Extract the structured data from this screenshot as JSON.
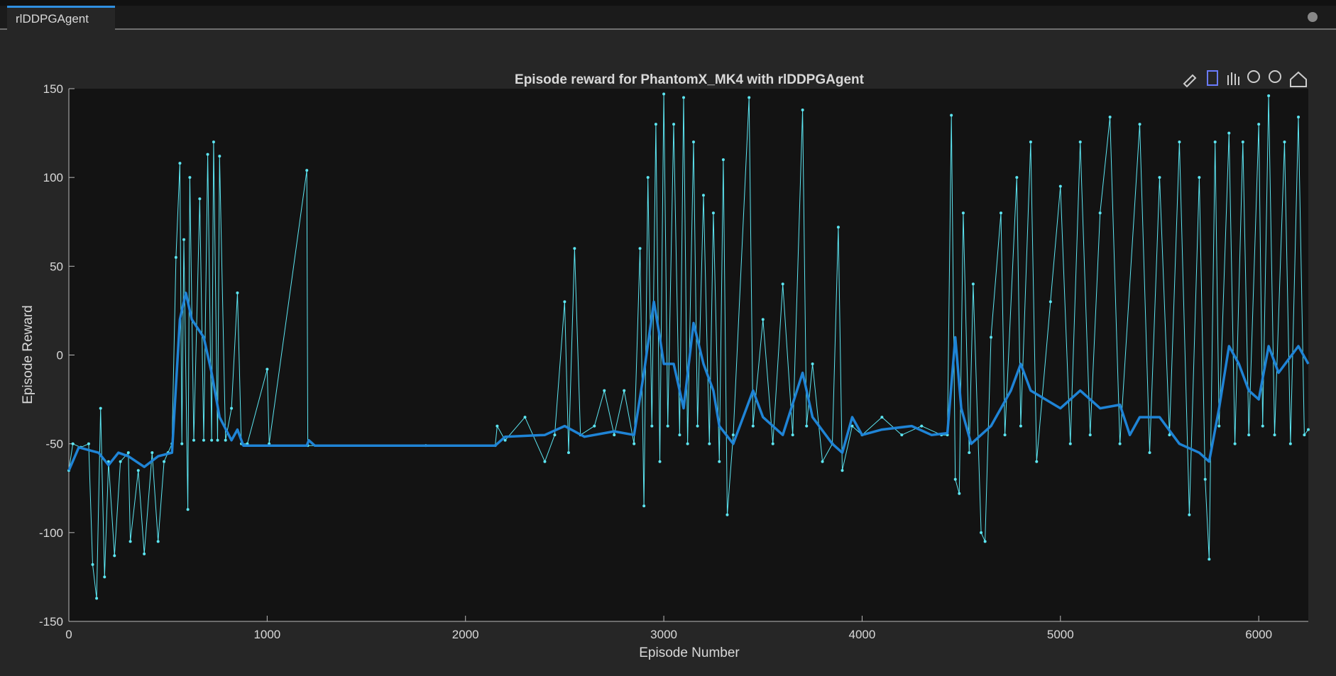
{
  "tab_label": "rlDDPGAgent",
  "chart_data": {
    "type": "line",
    "title": "Episode reward for PhantomX_MK4 with rlDDPGAgent",
    "xlabel": "Episode Number",
    "ylabel": "Episode Reward",
    "xlim": [
      0,
      6250
    ],
    "ylim": [
      -150,
      150
    ],
    "xticks": [
      0,
      1000,
      2000,
      3000,
      4000,
      5000,
      6000
    ],
    "yticks": [
      -150,
      -100,
      -50,
      0,
      50,
      100,
      150
    ],
    "grid": false,
    "series": [
      {
        "color": "#5ce6f2",
        "markers": true,
        "x": [
          0,
          20,
          60,
          100,
          120,
          140,
          160,
          180,
          200,
          230,
          260,
          300,
          310,
          350,
          380,
          420,
          450,
          480,
          500,
          520,
          540,
          560,
          570,
          580,
          600,
          610,
          630,
          660,
          680,
          700,
          720,
          730,
          750,
          760,
          790,
          820,
          850,
          870,
          900,
          1000,
          1010,
          1200,
          1205,
          1800,
          2150,
          2160,
          2200,
          2300,
          2400,
          2450,
          2500,
          2520,
          2550,
          2580,
          2650,
          2700,
          2750,
          2800,
          2850,
          2880,
          2900,
          2920,
          2940,
          2960,
          2980,
          3000,
          3020,
          3050,
          3080,
          3100,
          3120,
          3150,
          3170,
          3200,
          3230,
          3250,
          3280,
          3300,
          3320,
          3350,
          3430,
          3450,
          3500,
          3550,
          3600,
          3650,
          3700,
          3720,
          3750,
          3800,
          3850,
          3880,
          3900,
          3950,
          4000,
          4100,
          4200,
          4300,
          4400,
          4430,
          4450,
          4470,
          4490,
          4510,
          4540,
          4560,
          4600,
          4620,
          4650,
          4700,
          4720,
          4780,
          4800,
          4850,
          4880,
          4950,
          5000,
          5050,
          5100,
          5150,
          5200,
          5250,
          5300,
          5400,
          5450,
          5500,
          5550,
          5600,
          5650,
          5700,
          5730,
          5750,
          5780,
          5800,
          5850,
          5880,
          5920,
          5950,
          6000,
          6020,
          6050,
          6080,
          6130,
          6160,
          6200,
          6230,
          6250
        ],
        "values": [
          -65,
          -50,
          -52,
          -50,
          -118,
          -137,
          -30,
          -125,
          -60,
          -113,
          -60,
          -55,
          -105,
          -65,
          -112,
          -55,
          -105,
          -60,
          -55,
          -50,
          55,
          108,
          -50,
          65,
          -87,
          100,
          -48,
          88,
          -48,
          113,
          -48,
          120,
          -48,
          112,
          -48,
          -30,
          35,
          -50,
          -50,
          -8,
          -50,
          104,
          -51,
          -51,
          -51,
          -40,
          -48,
          -35,
          -60,
          -45,
          30,
          -55,
          60,
          -45,
          -40,
          -20,
          -45,
          -20,
          -50,
          60,
          -85,
          100,
          -40,
          130,
          -60,
          147,
          -40,
          130,
          -45,
          145,
          -50,
          120,
          -40,
          90,
          -50,
          80,
          -60,
          110,
          -90,
          -45,
          145,
          -40,
          20,
          -50,
          40,
          -45,
          138,
          -40,
          -5,
          -60,
          -50,
          72,
          -65,
          -40,
          -45,
          -35,
          -45,
          -40,
          -45,
          -45,
          135,
          -70,
          -78,
          80,
          -55,
          40,
          -100,
          -105,
          10,
          80,
          -45,
          100,
          -40,
          120,
          -60,
          30,
          95,
          -50,
          120,
          -45,
          80,
          134,
          -50,
          130,
          -55,
          100,
          -45,
          120,
          -90,
          100,
          -70,
          -115,
          120,
          -40,
          125,
          -50,
          120,
          -45,
          130,
          -40,
          146,
          -45,
          120,
          -50,
          134,
          -45,
          -42
        ]
      },
      {
        "color": "#1f84d6",
        "markers": false,
        "x": [
          0,
          50,
          150,
          200,
          250,
          300,
          380,
          450,
          520,
          560,
          590,
          620,
          680,
          720,
          760,
          820,
          850,
          880,
          1000,
          1200,
          1210,
          1240,
          2150,
          2200,
          2400,
          2500,
          2600,
          2750,
          2850,
          2900,
          2950,
          2980,
          3000,
          3050,
          3100,
          3150,
          3200,
          3250,
          3280,
          3350,
          3450,
          3500,
          3600,
          3700,
          3750,
          3850,
          3900,
          3950,
          4000,
          4100,
          4250,
          4350,
          4430,
          4470,
          4500,
          4550,
          4650,
          4750,
          4800,
          4850,
          5000,
          5050,
          5100,
          5200,
          5300,
          5350,
          5400,
          5500,
          5600,
          5700,
          5750,
          5800,
          5850,
          5900,
          5950,
          6000,
          6050,
          6100,
          6200,
          6250
        ],
        "values": [
          -65,
          -52,
          -55,
          -62,
          -55,
          -57,
          -63,
          -57,
          -55,
          20,
          35,
          20,
          10,
          -10,
          -35,
          -48,
          -42,
          -51,
          -51,
          -51,
          -48,
          -51,
          -51,
          -46,
          -45,
          -40,
          -46,
          -43,
          -45,
          -10,
          30,
          10,
          -5,
          -5,
          -30,
          18,
          -5,
          -20,
          -40,
          -50,
          -20,
          -35,
          -45,
          -10,
          -35,
          -50,
          -55,
          -35,
          -45,
          -42,
          -40,
          -45,
          -44,
          10,
          -30,
          -50,
          -40,
          -20,
          -5,
          -20,
          -30,
          -25,
          -20,
          -30,
          -28,
          -45,
          -35,
          -35,
          -50,
          -55,
          -60,
          -30,
          5,
          -5,
          -20,
          -25,
          5,
          -10,
          5,
          -5
        ]
      }
    ]
  }
}
